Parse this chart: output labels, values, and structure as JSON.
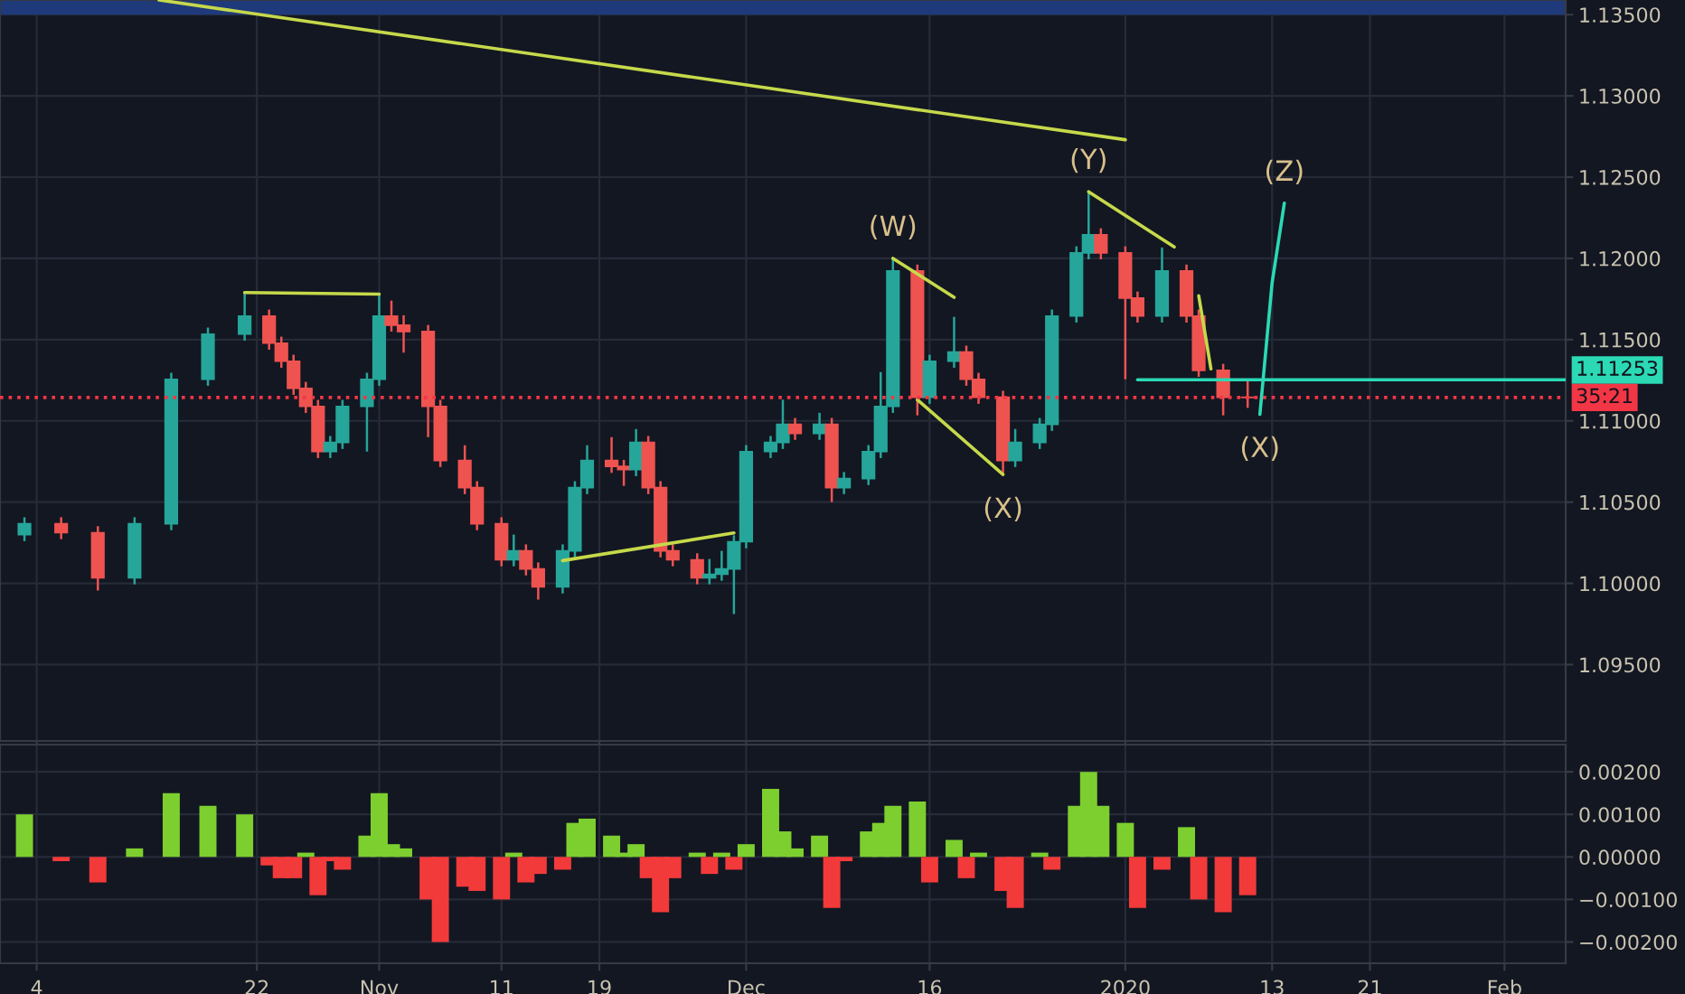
{
  "chart_data": [
    {
      "type": "candlestick",
      "x": [
        "2019-10-03",
        "2019-10-06",
        "2019-10-09",
        "2019-10-12",
        "2019-10-15",
        "2019-10-18",
        "2019-10-21",
        "2019-10-23",
        "2019-10-24",
        "2019-10-25",
        "2019-10-26",
        "2019-10-27",
        "2019-10-28",
        "2019-10-29",
        "2019-10-31",
        "2019-11-01",
        "2019-11-02",
        "2019-11-03",
        "2019-11-05",
        "2019-11-06",
        "2019-11-08",
        "2019-11-09",
        "2019-11-11",
        "2019-11-12",
        "2019-11-13",
        "2019-11-14",
        "2019-11-16",
        "2019-11-17",
        "2019-11-18",
        "2019-11-20",
        "2019-11-21",
        "2019-11-22",
        "2019-11-23",
        "2019-11-24",
        "2019-11-25",
        "2019-11-27",
        "2019-11-28",
        "2019-11-29",
        "2019-11-30",
        "2019-12-01",
        "2019-12-03",
        "2019-12-04",
        "2019-12-05",
        "2019-12-07",
        "2019-12-08",
        "2019-12-09",
        "2019-12-11",
        "2019-12-12",
        "2019-12-13",
        "2019-12-15",
        "2019-12-16",
        "2019-12-18",
        "2019-12-19",
        "2019-12-20",
        "2019-12-22",
        "2019-12-23",
        "2019-12-25",
        "2019-12-26",
        "2019-12-28",
        "2019-12-29",
        "2019-12-30",
        "2020-01-01",
        "2020-01-02",
        "2020-01-04",
        "2020-01-06",
        "2020-01-07",
        "2020-01-09",
        "2020-01-11"
      ],
      "ohlc": [
        [
          1.103,
          1.10407,
          1.1026,
          1.10367
        ],
        [
          1.10367,
          1.10407,
          1.10272,
          1.10312
        ],
        [
          1.10312,
          1.10352,
          1.09956,
          1.10034
        ],
        [
          1.10034,
          1.10407,
          1.09994,
          1.10367
        ],
        [
          1.10367,
          1.11296,
          1.10327,
          1.11256
        ],
        [
          1.11256,
          1.11574,
          1.11216,
          1.11534
        ],
        [
          1.11534,
          1.1179,
          1.11494,
          1.11645
        ],
        [
          1.11645,
          1.11685,
          1.11438,
          1.11478
        ],
        [
          1.11478,
          1.11518,
          1.11327,
          1.11367
        ],
        [
          1.11367,
          1.11407,
          1.1116,
          1.112
        ],
        [
          1.112,
          1.1124,
          1.11049,
          1.11089
        ],
        [
          1.11089,
          1.11129,
          1.10771,
          1.10811
        ],
        [
          1.10811,
          1.10907,
          1.10771,
          1.10867
        ],
        [
          1.10867,
          1.11129,
          1.10827,
          1.11089
        ],
        [
          1.11089,
          1.11296,
          1.10811,
          1.11256
        ],
        [
          1.11256,
          1.11778,
          1.11216,
          1.11645
        ],
        [
          1.11645,
          1.1174,
          1.11549,
          1.11589
        ],
        [
          1.11589,
          1.1165,
          1.1142,
          1.1155
        ],
        [
          1.1155,
          1.1159,
          1.109,
          1.11089
        ],
        [
          1.11089,
          1.11129,
          1.10716,
          1.10756
        ],
        [
          1.10756,
          1.1085,
          1.10549,
          1.10589
        ],
        [
          1.10589,
          1.10629,
          1.10327,
          1.10367
        ],
        [
          1.10367,
          1.10407,
          1.10105,
          1.10145
        ],
        [
          1.10145,
          1.103,
          1.10105,
          1.102
        ],
        [
          1.102,
          1.1024,
          1.10049,
          1.10089
        ],
        [
          1.10089,
          1.10129,
          1.099,
          1.09978
        ],
        [
          1.09978,
          1.1024,
          1.09938,
          1.102
        ],
        [
          1.102,
          1.10629,
          1.1016,
          1.10589
        ],
        [
          1.10589,
          1.1085,
          1.10549,
          1.10756
        ],
        [
          1.10756,
          1.109,
          1.1068,
          1.1072
        ],
        [
          1.1072,
          1.1076,
          1.106,
          1.107
        ],
        [
          1.107,
          1.1095,
          1.1066,
          1.10867
        ],
        [
          1.10867,
          1.10907,
          1.10549,
          1.10589
        ],
        [
          1.10589,
          1.10629,
          1.1016,
          1.102
        ],
        [
          1.102,
          1.1024,
          1.10105,
          1.10145
        ],
        [
          1.10145,
          1.10185,
          1.09994,
          1.10034
        ],
        [
          1.10034,
          1.1015,
          1.09994,
          1.10056
        ],
        [
          1.10056,
          1.102,
          1.10016,
          1.10089
        ],
        [
          1.10089,
          1.10296,
          1.09811,
          1.10256
        ],
        [
          1.10256,
          1.10851,
          1.10216,
          1.10811
        ],
        [
          1.10811,
          1.10907,
          1.10771,
          1.10867
        ],
        [
          1.10867,
          1.1113,
          1.10827,
          1.10978
        ],
        [
          1.10978,
          1.11018,
          1.10883,
          1.10923
        ],
        [
          1.10923,
          1.1105,
          1.10883,
          1.10978
        ],
        [
          1.10978,
          1.11018,
          1.105,
          1.10589
        ],
        [
          1.10589,
          1.10685,
          1.10549,
          1.10645
        ],
        [
          1.10645,
          1.10851,
          1.10605,
          1.10811
        ],
        [
          1.10811,
          1.113,
          1.10771,
          1.11089
        ],
        [
          1.11089,
          1.12,
          1.11049,
          1.11922
        ],
        [
          1.11922,
          1.11962,
          1.11034,
          1.11145
        ],
        [
          1.11145,
          1.11407,
          1.11105,
          1.11367
        ],
        [
          1.11367,
          1.1164,
          1.11327,
          1.11423
        ],
        [
          1.11423,
          1.11463,
          1.11216,
          1.11256
        ],
        [
          1.11256,
          1.11296,
          1.11105,
          1.11145
        ],
        [
          1.11145,
          1.11185,
          1.10667,
          1.10756
        ],
        [
          1.10756,
          1.1095,
          1.10716,
          1.10867
        ],
        [
          1.10867,
          1.11018,
          1.10827,
          1.10978
        ],
        [
          1.10978,
          1.11685,
          1.10938,
          1.11645
        ],
        [
          1.11645,
          1.12074,
          1.11605,
          1.12034
        ],
        [
          1.12034,
          1.12411,
          1.11994,
          1.12145
        ],
        [
          1.12145,
          1.12185,
          1.11994,
          1.12034
        ],
        [
          1.12034,
          1.12074,
          1.11256,
          1.11756
        ],
        [
          1.11756,
          1.11796,
          1.11605,
          1.11645
        ],
        [
          1.11645,
          1.12067,
          1.11605,
          1.11922
        ],
        [
          1.11922,
          1.11962,
          1.11605,
          1.11645
        ],
        [
          1.11645,
          1.11685,
          1.11271,
          1.11311
        ],
        [
          1.11311,
          1.11351,
          1.11034,
          1.11145
        ],
        [
          1.11145,
          1.11253,
          1.1108,
          1.11144
        ]
      ],
      "colors": [
        "#26a69a",
        "#ef5350",
        "#ef5350",
        "#26a69a",
        "#26a69a",
        "#26a69a",
        "#26a69a",
        "#ef5350",
        "#ef5350",
        "#ef5350",
        "#ef5350",
        "#ef5350",
        "#26a69a",
        "#26a69a",
        "#26a69a",
        "#26a69a",
        "#ef5350",
        "#ef5350",
        "#ef5350",
        "#ef5350",
        "#ef5350",
        "#ef5350",
        "#ef5350",
        "#26a69a",
        "#ef5350",
        "#ef5350",
        "#26a69a",
        "#26a69a",
        "#26a69a",
        "#ef5350",
        "#ef5350",
        "#26a69a",
        "#ef5350",
        "#ef5350",
        "#ef5350",
        "#ef5350",
        "#26a69a",
        "#26a69a",
        "#26a69a",
        "#26a69a",
        "#26a69a",
        "#26a69a",
        "#ef5350",
        "#26a69a",
        "#ef5350",
        "#26a69a",
        "#26a69a",
        "#26a69a",
        "#26a69a",
        "#ef5350",
        "#26a69a",
        "#26a69a",
        "#ef5350",
        "#ef5350",
        "#ef5350",
        "#26a69a",
        "#26a69a",
        "#26a69a",
        "#26a69a",
        "#26a69a",
        "#ef5350",
        "#ef5350",
        "#ef5350",
        "#26a69a",
        "#ef5350",
        "#ef5350",
        "#ef5350",
        "#ef5350"
      ],
      "series": [
        {
          "type": "line",
          "color": "#c6d94a",
          "x": [
            "2019-10-14",
            "2020-01-01"
          ],
          "values": [
            1.1359,
            1.1273
          ]
        },
        {
          "type": "line",
          "color": "#c6d94a",
          "x": [
            "2019-10-21",
            "2019-11-01"
          ],
          "values": [
            1.1179,
            1.1178
          ]
        },
        {
          "type": "line",
          "color": "#c6d94a",
          "x": [
            "2019-11-16",
            "2019-11-30"
          ],
          "values": [
            1.1014,
            1.1031
          ]
        },
        {
          "type": "line",
          "color": "#c6d94a",
          "x": [
            "2019-12-13",
            "2019-12-18"
          ],
          "values": [
            1.12,
            1.1176
          ]
        },
        {
          "type": "line",
          "color": "#c6d94a",
          "x": [
            "2019-12-15",
            "2019-12-22"
          ],
          "values": [
            1.1113,
            1.1067
          ]
        },
        {
          "type": "line",
          "color": "#c6d94a",
          "x": [
            "2019-12-29",
            "2020-01-05"
          ],
          "values": [
            1.1241,
            1.1207
          ]
        },
        {
          "type": "line",
          "color": "#c6d94a",
          "x": [
            "2020-01-07",
            "2020-01-08"
          ],
          "values": [
            1.1177,
            1.1132
          ]
        },
        {
          "type": "line",
          "color": "#2bd9b5",
          "x": [
            "2020-01-02",
            "2020-02-06"
          ],
          "values": [
            1.11253,
            1.11253
          ]
        },
        {
          "type": "line",
          "color": "#f23645",
          "line_style": "dotted",
          "x": [
            "2019-10-01",
            "2020-02-06"
          ],
          "values": [
            1.11144,
            1.11144
          ]
        },
        {
          "type": "line",
          "color": "#2bd9b5",
          "x": [
            "2020-01-12",
            "2020-01-13",
            "2020-01-14"
          ],
          "values": [
            1.1104,
            1.1185,
            1.1234
          ]
        }
      ],
      "annotations": [
        {
          "text": "(W)",
          "x": "2019-12-13",
          "y": 1.12
        },
        {
          "text": "(X)",
          "x": "2019-12-22",
          "y": 1.10667
        },
        {
          "text": "(Y)",
          "x": "2019-12-29",
          "y": 1.12411
        },
        {
          "text": "(X)",
          "x": "2020-01-12",
          "y": 1.1104
        },
        {
          "text": "(Z)",
          "x": "2020-01-14",
          "y": 1.1234
        },
        {
          "text": "1.11253",
          "x": "2020-02-06",
          "y": 1.11253
        },
        {
          "text": "35:21",
          "x": "2020-02-06",
          "y": 1.11144
        }
      ],
      "bands": [
        {
          "axis": "y",
          "from": 1.135,
          "to": 1.1359,
          "color": "#1f3a7a"
        }
      ],
      "xlim": [
        "2019-10-01",
        "2020-02-06"
      ],
      "xticks": [
        {
          "value": "2019-10-04",
          "label": null
        },
        {
          "value": "2019-10-22",
          "label": null
        },
        {
          "value": "2019-11-01",
          "label": null
        },
        {
          "value": "2019-11-11",
          "label": null
        },
        {
          "value": "2019-11-19",
          "label": null
        },
        {
          "value": "2019-12-01",
          "label": null
        },
        {
          "value": "2019-12-16",
          "label": null
        },
        {
          "value": "2020-01-01",
          "label": null
        },
        {
          "value": "2020-01-13",
          "label": null
        },
        {
          "value": "2020-01-21",
          "label": null
        },
        {
          "value": "2020-02-01",
          "label": null
        }
      ],
      "ylim": [
        1.0903,
        1.1359
      ],
      "yticks": [
        {
          "value": 1.095,
          "label": "1.09500"
        },
        {
          "value": 1.1,
          "label": "1.10000"
        },
        {
          "value": 1.105,
          "label": "1.10500"
        },
        {
          "value": 1.11,
          "label": "1.11000"
        },
        {
          "value": 1.115,
          "label": "1.11500"
        },
        {
          "value": 1.12,
          "label": "1.12000"
        },
        {
          "value": 1.125,
          "label": "1.12500"
        },
        {
          "value": 1.13,
          "label": "1.13000"
        },
        {
          "value": 1.135,
          "label": "1.13500"
        }
      ],
      "tick_labels": "y",
      "grid": true
    },
    {
      "type": "bar",
      "x": [
        "2019-10-03",
        "2019-10-06",
        "2019-10-09",
        "2019-10-12",
        "2019-10-15",
        "2019-10-18",
        "2019-10-21",
        "2019-10-23",
        "2019-10-24",
        "2019-10-25",
        "2019-10-26",
        "2019-10-27",
        "2019-10-28",
        "2019-10-29",
        "2019-10-31",
        "2019-11-01",
        "2019-11-02",
        "2019-11-03",
        "2019-11-05",
        "2019-11-06",
        "2019-11-08",
        "2019-11-09",
        "2019-11-11",
        "2019-11-12",
        "2019-11-13",
        "2019-11-14",
        "2019-11-16",
        "2019-11-17",
        "2019-11-18",
        "2019-11-20",
        "2019-11-21",
        "2019-11-22",
        "2019-11-23",
        "2019-11-24",
        "2019-11-25",
        "2019-11-27",
        "2019-11-28",
        "2019-11-29",
        "2019-11-30",
        "2019-12-01",
        "2019-12-03",
        "2019-12-04",
        "2019-12-05",
        "2019-12-07",
        "2019-12-08",
        "2019-12-09",
        "2019-12-11",
        "2019-12-12",
        "2019-12-13",
        "2019-12-15",
        "2019-12-16",
        "2019-12-18",
        "2019-12-19",
        "2019-12-20",
        "2019-12-22",
        "2019-12-23",
        "2019-12-25",
        "2019-12-26",
        "2019-12-28",
        "2019-12-29",
        "2019-12-30",
        "2020-01-01",
        "2020-01-02",
        "2020-01-04",
        "2020-01-06",
        "2020-01-07",
        "2020-01-09",
        "2020-01-11"
      ],
      "values": [
        0.001,
        -0.0001,
        -0.0006,
        0.0002,
        0.0015,
        0.0012,
        0.001,
        -0.0002,
        -0.0005,
        -0.0005,
        0.0001,
        -0.0009,
        -0.0001,
        -0.0003,
        0.0005,
        0.0015,
        0.0003,
        0.0002,
        -0.001,
        -0.002,
        -0.0007,
        -0.0008,
        -0.001,
        0.0001,
        -0.0006,
        -0.0004,
        -0.0003,
        0.0008,
        0.0009,
        0.0005,
        0.0001,
        0.0003,
        -0.0005,
        -0.0013,
        -0.0005,
        0.0001,
        -0.0004,
        0.0001,
        -0.0003,
        0.0003,
        0.0016,
        0.0006,
        0.0002,
        0.0005,
        -0.0012,
        -0.0001,
        0.0006,
        0.0008,
        0.0012,
        0.0013,
        -0.0006,
        0.0004,
        -0.0005,
        0.0001,
        -0.0008,
        -0.0012,
        0.0001,
        -0.0003,
        0.0012,
        0.002,
        0.0012,
        0.0008,
        -0.0012,
        -0.0003,
        0.0007,
        -0.001,
        -0.0013,
        -0.0009
      ],
      "colors": [
        "#7ccf2e",
        "#f23a3a",
        "#f23a3a",
        "#7ccf2e",
        "#7ccf2e",
        "#7ccf2e",
        "#7ccf2e",
        "#f23a3a",
        "#f23a3a",
        "#f23a3a",
        "#7ccf2e",
        "#f23a3a",
        "#f23a3a",
        "#f23a3a",
        "#7ccf2e",
        "#7ccf2e",
        "#7ccf2e",
        "#7ccf2e",
        "#f23a3a",
        "#f23a3a",
        "#f23a3a",
        "#f23a3a",
        "#f23a3a",
        "#7ccf2e",
        "#f23a3a",
        "#f23a3a",
        "#f23a3a",
        "#7ccf2e",
        "#7ccf2e",
        "#7ccf2e",
        "#7ccf2e",
        "#7ccf2e",
        "#f23a3a",
        "#f23a3a",
        "#f23a3a",
        "#7ccf2e",
        "#f23a3a",
        "#7ccf2e",
        "#f23a3a",
        "#7ccf2e",
        "#7ccf2e",
        "#7ccf2e",
        "#7ccf2e",
        "#7ccf2e",
        "#f23a3a",
        "#f23a3a",
        "#7ccf2e",
        "#7ccf2e",
        "#7ccf2e",
        "#7ccf2e",
        "#f23a3a",
        "#7ccf2e",
        "#f23a3a",
        "#7ccf2e",
        "#f23a3a",
        "#f23a3a",
        "#7ccf2e",
        "#f23a3a",
        "#7ccf2e",
        "#7ccf2e",
        "#7ccf2e",
        "#7ccf2e",
        "#f23a3a",
        "#f23a3a",
        "#7ccf2e",
        "#f23a3a",
        "#f23a3a",
        "#f23a3a"
      ],
      "xlim": [
        "2019-10-01",
        "2020-02-06"
      ],
      "xticks": [
        {
          "value": "2019-10-04",
          "label": "4"
        },
        {
          "value": "2019-10-22",
          "label": "22"
        },
        {
          "value": "2019-11-01",
          "label": "Nov"
        },
        {
          "value": "2019-11-11",
          "label": "11"
        },
        {
          "value": "2019-11-19",
          "label": "19"
        },
        {
          "value": "2019-12-01",
          "label": "Dec"
        },
        {
          "value": "2019-12-16",
          "label": "16"
        },
        {
          "value": "2020-01-01",
          "label": "2020"
        },
        {
          "value": "2020-01-13",
          "label": "13"
        },
        {
          "value": "2020-01-21",
          "label": "21"
        },
        {
          "value": "2020-02-01",
          "label": "Feb"
        }
      ],
      "ylim": [
        -0.0025,
        0.00264
      ],
      "yticks": [
        {
          "value": -0.002,
          "label": "−0.00200"
        },
        {
          "value": -0.001,
          "label": "−0.00100"
        },
        {
          "value": 0.0,
          "label": "0.00000"
        },
        {
          "value": 0.001,
          "label": "0.00100"
        },
        {
          "value": 0.002,
          "label": "0.00200"
        }
      ],
      "grid": true
    }
  ]
}
